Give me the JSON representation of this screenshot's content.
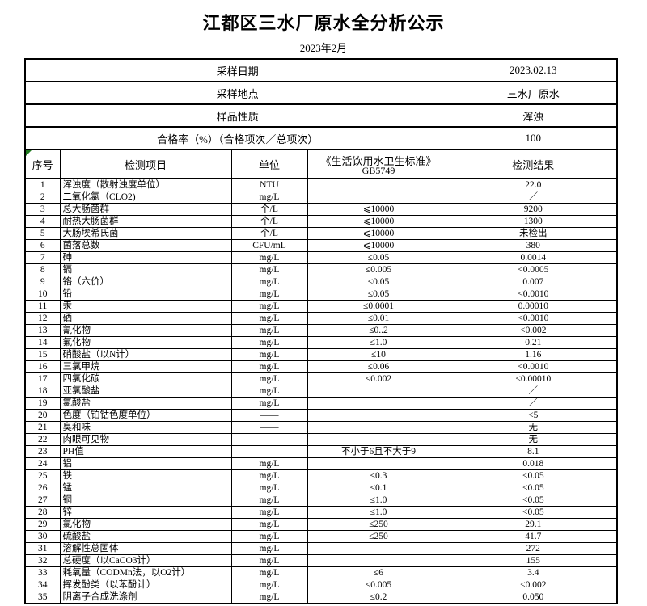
{
  "page_title": "江都区三水厂原水全分析公示",
  "subtitle": "2023年2月",
  "info_rows": [
    {
      "label": "采样日期",
      "value": "2023.02.13"
    },
    {
      "label": "采样地点",
      "value": "三水厂原水"
    },
    {
      "label": "样品性质",
      "value": "浑浊"
    },
    {
      "label": "合格率（%）（合格项次／总项次）",
      "value": "100"
    }
  ],
  "columns": {
    "seq": "序号",
    "item": "检测项目",
    "unit": "单位",
    "standard_line1": "《生活饮用水卫生标准》",
    "standard_line2": "GB5749",
    "result": "检测结果"
  },
  "rows": [
    [
      "1",
      "浑浊度（散射浊度单位）",
      "NTU",
      "",
      "22.0"
    ],
    [
      "2",
      "二氧化氯（CLO2)",
      "mg/L",
      "",
      "／"
    ],
    [
      "3",
      "总大肠菌群",
      "个/L",
      "⩽10000",
      "9200"
    ],
    [
      "4",
      "耐热大肠菌群",
      "个/L",
      "⩽10000",
      "1300"
    ],
    [
      "5",
      "大肠埃希氏菌",
      "个/L",
      "⩽10000",
      "未检出"
    ],
    [
      "6",
      "菌落总数",
      "CFU/mL",
      "⩽10000",
      "380"
    ],
    [
      "7",
      "砷",
      "mg/L",
      "≤0.05",
      "0.0014"
    ],
    [
      "8",
      "镉",
      "mg/L",
      "≤0.005",
      "<0.0005"
    ],
    [
      "9",
      "铬（六价）",
      "mg/L",
      "≤0.05",
      "0.007"
    ],
    [
      "10",
      "铅",
      "mg/L",
      "≤0.05",
      "<0.0010"
    ],
    [
      "11",
      "汞",
      "mg/L",
      "≤0.0001",
      "0.00010"
    ],
    [
      "12",
      "硒",
      "mg/L",
      "≤0.01",
      "<0.0010"
    ],
    [
      "13",
      "氰化物",
      "mg/L",
      "≤0..2",
      "<0.002"
    ],
    [
      "14",
      "氟化物",
      "mg/L",
      "≤1.0",
      "0.21"
    ],
    [
      "15",
      "硝酸盐（以N计）",
      "mg/L",
      "≤10",
      "1.16"
    ],
    [
      "16",
      "三氯甲烷",
      "mg/L",
      "≤0.06",
      "<0.0010"
    ],
    [
      "17",
      "四氯化碳",
      "mg/L",
      "≤0.002",
      "<0.00010"
    ],
    [
      "18",
      "亚氯酸盐",
      "mg/L",
      "",
      "／"
    ],
    [
      "19",
      "氯酸盐",
      "mg/L",
      "",
      "／"
    ],
    [
      "20",
      "色度（铂钴色度单位）",
      "——",
      "",
      "<5"
    ],
    [
      "21",
      "臭和味",
      "——",
      "",
      "无"
    ],
    [
      "22",
      "肉眼可见物",
      "——",
      "",
      "无"
    ],
    [
      "23",
      "PH值",
      "——",
      "不小于6且不大于9",
      "8.1"
    ],
    [
      "24",
      "铝",
      "mg/L",
      "",
      "0.018"
    ],
    [
      "25",
      "铁",
      "mg/L",
      "≤0.3",
      "<0.05"
    ],
    [
      "26",
      "锰",
      "mg/L",
      "≤0.1",
      "<0.05"
    ],
    [
      "27",
      "铜",
      "mg/L",
      "≤1.0",
      "<0.05"
    ],
    [
      "28",
      "锌",
      "mg/L",
      "≤1.0",
      "<0.05"
    ],
    [
      "29",
      "氯化物",
      "mg/L",
      "≤250",
      "29.1"
    ],
    [
      "30",
      "硫酸盐",
      "mg/L",
      "≤250",
      "41.7"
    ],
    [
      "31",
      "溶解性总固体",
      "mg/L",
      "",
      "272"
    ],
    [
      "32",
      "总硬度（以CaCO3计）",
      "mg/L",
      "",
      "155"
    ],
    [
      "33",
      "耗氧量（CODMn法，以O2计）",
      "mg/L",
      "≤6",
      "3.4"
    ],
    [
      "34",
      "挥发酚类（以苯酚计）",
      "mg/L",
      "≤0.005",
      "<0.002"
    ],
    [
      "35",
      "阴离子合成洗涤剂",
      "mg/L",
      "≤0.2",
      "0.050"
    ]
  ],
  "colors": {
    "text": "#000000",
    "border": "#000000",
    "background": "#ffffff",
    "corner_triangle": "#1f7a1f"
  }
}
